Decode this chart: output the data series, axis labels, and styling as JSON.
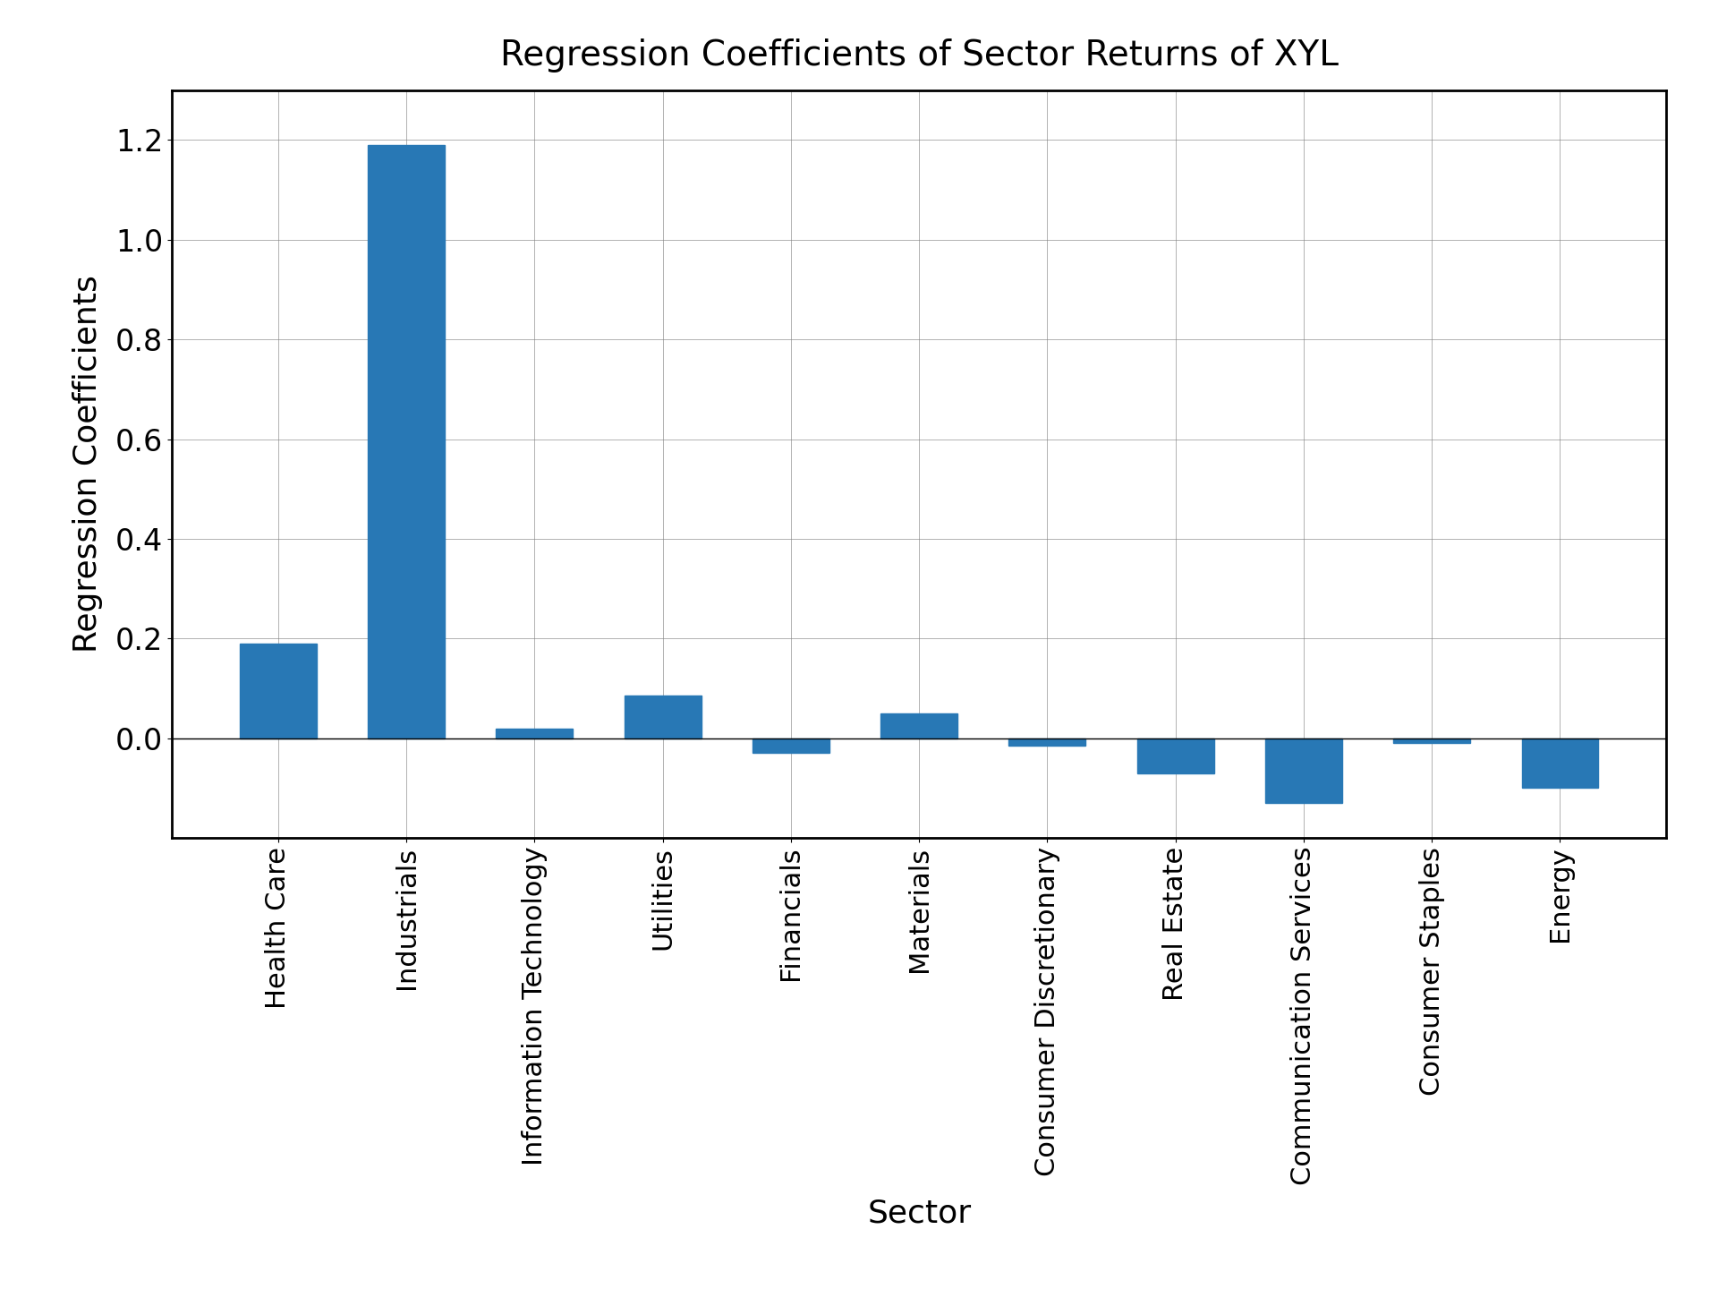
{
  "title": "Regression Coefficients of Sector Returns of XYL",
  "xlabel": "Sector",
  "ylabel": "Regression Coefficients",
  "categories": [
    "Health Care",
    "Industrials",
    "Information Technology",
    "Utilities",
    "Financials",
    "Materials",
    "Consumer Discretionary",
    "Real Estate",
    "Communication Services",
    "Consumer Staples",
    "Energy"
  ],
  "values": [
    0.19,
    1.19,
    0.02,
    0.085,
    -0.03,
    0.05,
    -0.015,
    -0.07,
    -0.13,
    -0.01,
    -0.1
  ],
  "bar_color": "#2878b5",
  "ylim": [
    -0.2,
    1.3
  ],
  "yticks": [
    0.0,
    0.2,
    0.4,
    0.6,
    0.8,
    1.0,
    1.2
  ],
  "title_fontsize": 28,
  "label_fontsize": 26,
  "tick_fontsize": 24,
  "xtick_fontsize": 22
}
